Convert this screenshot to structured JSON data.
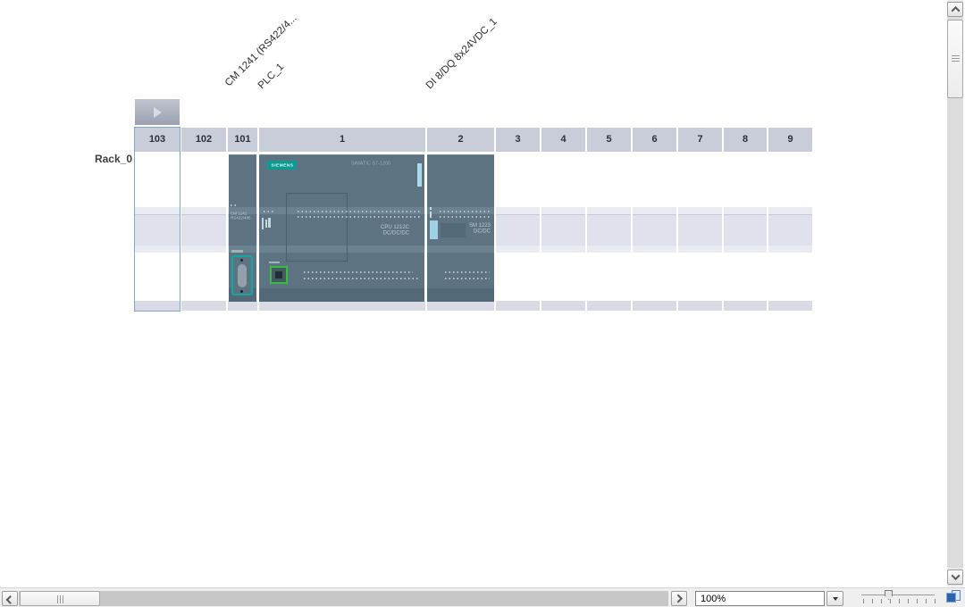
{
  "module_labels": [
    "CM 1241 (RS422/4...",
    "PLC_1",
    "DI 8/DQ 8x24VDC_1"
  ],
  "rack": {
    "name": "Rack_0",
    "slot_labels": [
      "103",
      "102",
      "101",
      "1",
      "2",
      "3",
      "4",
      "5",
      "6",
      "7",
      "8",
      "9"
    ],
    "selected_slot": "103"
  },
  "devices": {
    "cm1241": {
      "name_line1": "CM 1241",
      "name_line2": "RS422/485"
    },
    "cpu": {
      "brand": "SIEMENS",
      "family": "SIMATIC S7-1200",
      "model": "CPU 1212C",
      "spec": "DC/DC/DC"
    },
    "sm": {
      "model": "SM 1223",
      "spec": "DC/DC"
    }
  },
  "statusbar": {
    "zoom_value": "100%"
  },
  "icons": {
    "expand_button": "play-triangle",
    "scroll_arrows": "chevrons",
    "zoom_dropdown": "triangle-down",
    "corner": "window-layout"
  },
  "colors": {
    "device_body": "#5d7381",
    "siemens_teal": "#0c9a93",
    "selection_blue": "#7fa8cf",
    "slot_header": "#c9cdd9",
    "ethernet_green": "#36bf3f",
    "dsub_teal": "#14a5a5",
    "led_blue": "#9fd3e3"
  }
}
